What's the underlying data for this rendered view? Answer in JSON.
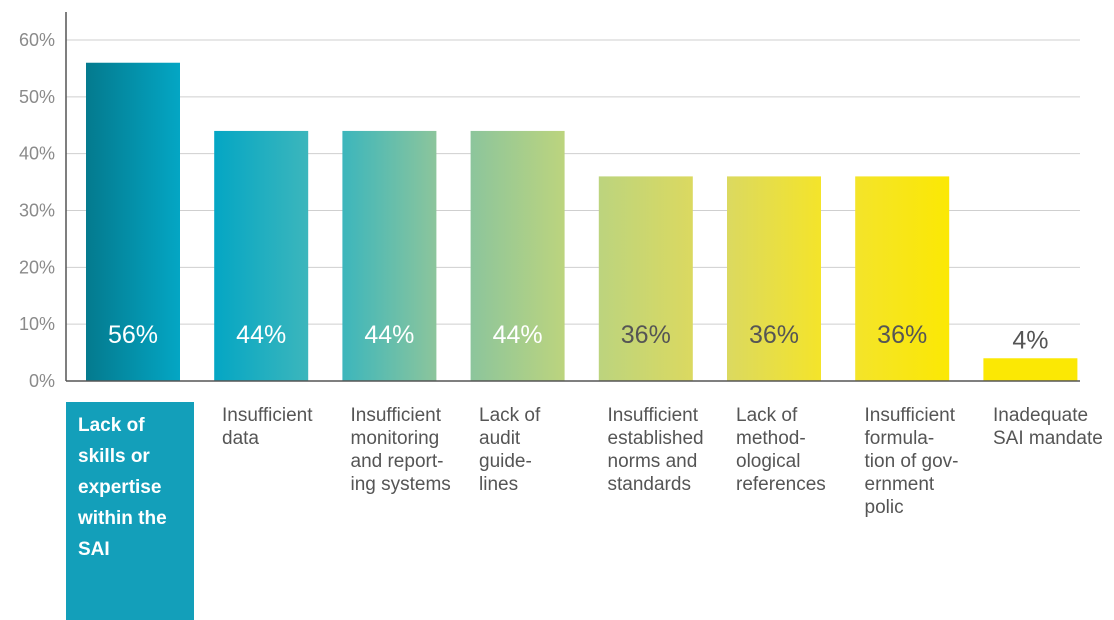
{
  "chart_data": {
    "type": "bar",
    "title": "",
    "xlabel": "",
    "ylabel": "",
    "ylim": [
      0,
      60
    ],
    "y_ticks": [
      "0%",
      "10%",
      "20%",
      "30%",
      "40%",
      "50%",
      "60%"
    ],
    "grid": true,
    "highlighted_category_index": 0,
    "categories": [
      [
        "Lack of",
        "skills or",
        "expertise",
        "within the",
        "SAI"
      ],
      [
        "Insufficient",
        "data"
      ],
      [
        "Insufficient",
        "monitoring",
        "and report-",
        "ing systems"
      ],
      [
        "Lack of",
        "audit",
        "guide-",
        "lines"
      ],
      [
        "Insufficient",
        "established",
        "norms and",
        "standards"
      ],
      [
        "Lack of",
        "method-",
        "ological",
        "references"
      ],
      [
        "Insufficient",
        "formula-",
        "tion of gov-",
        "ernment",
        "polic"
      ],
      [
        "Inadequate",
        "SAI mandate"
      ]
    ],
    "values": [
      56,
      44,
      44,
      44,
      36,
      36,
      36,
      4
    ],
    "value_labels": [
      "56%",
      "44%",
      "44%",
      "44%",
      "36%",
      "36%",
      "36%",
      "4%"
    ],
    "bar_colors": [
      "#047a8e",
      "#04a6c4",
      "#3cb6bc",
      "#8cc59c",
      "#bcd47e",
      "#dbd960",
      "#f4e42a",
      "#fbe804"
    ],
    "label_colors": [
      "#ffffff",
      "#ffffff",
      "#ffffff",
      "#ffffff",
      "#555555",
      "#555555",
      "#555555",
      "#555555"
    ]
  }
}
